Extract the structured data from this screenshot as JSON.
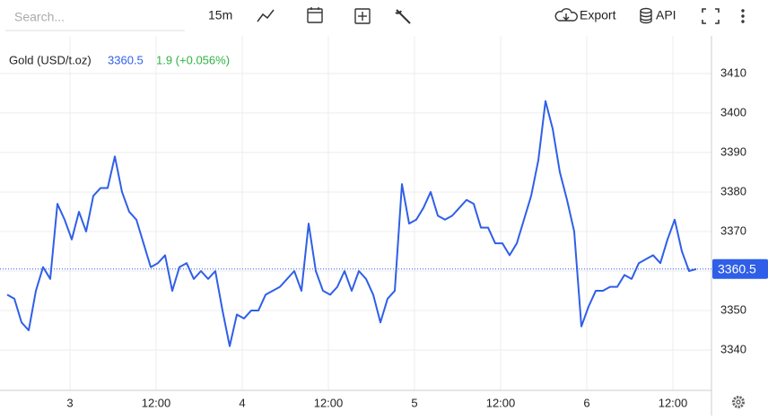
{
  "toolbar": {
    "search_placeholder": "Search...",
    "interval": "15m",
    "export": "Export",
    "api": "API"
  },
  "chart_data": {
    "type": "line",
    "series": [
      {
        "name": "Gold (USD/t.oz)",
        "color": "#2f5fe8",
        "values": [
          3354,
          3353,
          3347,
          3345,
          3355,
          3361,
          3358,
          3377,
          3373,
          3368,
          3375,
          3370,
          3379,
          3381,
          3381,
          3389,
          3380,
          3375,
          3373,
          3367,
          3361,
          3362,
          3364,
          3355,
          3361,
          3362,
          3358,
          3360,
          3358,
          3360,
          3350,
          3341,
          3349,
          3348,
          3350,
          3350,
          3354,
          3355,
          3356,
          3358,
          3360,
          3355,
          3372,
          3360,
          3355,
          3354,
          3356,
          3360,
          3355,
          3360,
          3358,
          3354,
          3347,
          3353,
          3355,
          3382,
          3372,
          3373,
          3376,
          3380,
          3374,
          3373,
          3374,
          3376,
          3378,
          3377,
          3371,
          3371,
          3367,
          3367,
          3364,
          3367,
          3373,
          3379,
          3388,
          3403,
          3396,
          3385,
          3378,
          3370,
          3346,
          3351,
          3355,
          3355,
          3356,
          3356,
          3359,
          3358,
          3362,
          3363,
          3364,
          3362,
          3368,
          3373,
          3365,
          3360,
          3360.5
        ]
      }
    ],
    "x": [
      -8.75,
      -7.75,
      -6.75,
      -5.75,
      -4.75,
      -3.75,
      -2.75,
      -1.75,
      -0.75,
      0.25,
      1.25,
      2.25,
      3.25,
      4.25,
      5.25,
      6.25,
      7.25,
      8.25,
      9.25,
      10.25,
      11.25,
      12.25,
      13.25,
      14.25,
      15.25,
      16.25,
      17.25,
      18.25,
      19.25,
      20.25,
      21.25,
      22.25,
      23.25,
      24.25,
      25.25,
      26.25,
      27.25,
      28.25,
      29.25,
      30.25,
      31.25,
      32.25,
      33.25,
      34.25,
      35.25,
      36.25,
      37.25,
      38.25,
      39.25,
      40.25,
      41.25,
      42.25,
      43.25,
      44.25,
      45.25,
      46.25,
      47.25,
      48.25,
      49.25,
      50.25,
      51.25,
      52.25,
      53.25,
      54.25,
      55.25,
      56.25,
      57.25,
      58.25,
      59.25,
      60.25,
      61.25,
      62.25,
      63.25,
      64.25,
      65.25,
      66.25,
      67.25,
      68.25,
      69.25,
      70.25,
      71.25,
      72.25,
      73.25,
      74.25,
      75.25,
      76.25,
      77.25,
      78.25,
      79.25,
      80.25,
      81.25,
      82.25,
      83.25,
      84.25,
      85.25,
      86.25,
      87.25
    ],
    "change_label": "1.9 (+0.056%)",
    "xlim": [
      -9.75,
      89.375
    ],
    "xticks": [
      {
        "value": 0,
        "label": "3"
      },
      {
        "value": 12,
        "label": "12:00"
      },
      {
        "value": 24,
        "label": "4"
      },
      {
        "value": 36,
        "label": "12:00"
      },
      {
        "value": 48,
        "label": "5"
      },
      {
        "value": 60,
        "label": "12:00"
      },
      {
        "value": 72,
        "label": "6"
      },
      {
        "value": 84,
        "label": "12:00"
      }
    ],
    "ylim": [
      3329.8,
      3419.5
    ],
    "yticks": [
      3340,
      3350,
      3360,
      3370,
      3380,
      3390,
      3400,
      3410
    ],
    "grid": true
  }
}
